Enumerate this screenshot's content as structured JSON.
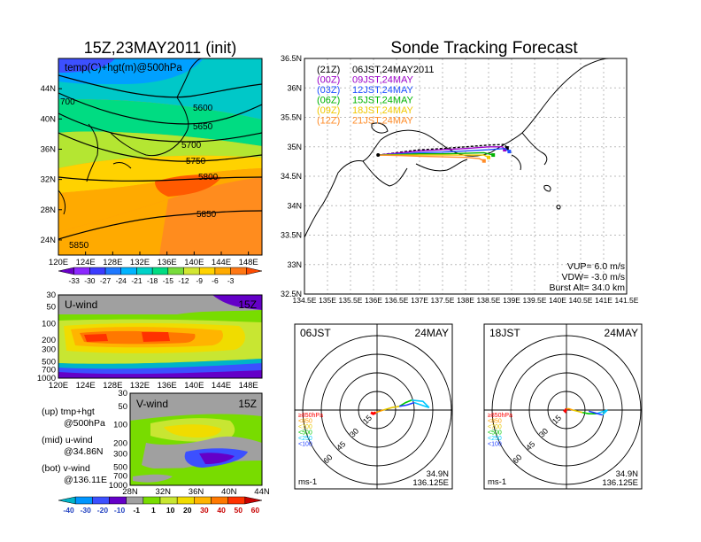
{
  "colors": {
    "temp_scale": [
      "#6a00c8",
      "#8c28ff",
      "#3c3cff",
      "#1e78ff",
      "#00b4ff",
      "#00d2c8",
      "#00dc82",
      "#78dc3c",
      "#d2e632",
      "#ffd200",
      "#ffaa00",
      "#ff7814",
      "#ff4b00"
    ],
    "wind_scale": [
      "#00b4c8",
      "#0096ff",
      "#3c50ff",
      "#6400c8",
      "#a0a0a0",
      "#78dc00",
      "#c8e632",
      "#f0dc00",
      "#ffb400",
      "#ff7800",
      "#ff3200",
      "#c80000"
    ],
    "tracks": [
      "#000000",
      "#9b00c8",
      "#1e50ff",
      "#00b400",
      "#f0c800",
      "#ff8c28"
    ]
  },
  "panel_temp": {
    "title": "15Z,23MAY2011 (init)",
    "label": "temp(C)+hgt(m)@500hPa",
    "lat_ticks": [
      "44N",
      "40N",
      "36N",
      "32N",
      "28N",
      "24N"
    ],
    "lon_ticks": [
      "120E",
      "124E",
      "128E",
      "132E",
      "136E",
      "140E",
      "144E",
      "148E"
    ],
    "contours": [
      "5600",
      "5650",
      "5700",
      "5750",
      "5800",
      "5850",
      "5850",
      "700"
    ],
    "colorbar_labels": [
      "-33",
      "-30",
      "-27",
      "-24",
      "-21",
      "-18",
      "-15",
      "-12",
      "-9",
      "-6",
      "-3"
    ]
  },
  "panel_uwind": {
    "label": "U-wind",
    "time": "15Z",
    "p_ticks": [
      "30",
      "50",
      "100",
      "200",
      "300",
      "500",
      "700",
      "1000"
    ],
    "lon_ticks": [
      "120E",
      "124E",
      "128E",
      "132E",
      "136E",
      "140E",
      "144E",
      "148E"
    ]
  },
  "panel_vwind": {
    "label": "V-wind",
    "time": "15Z",
    "p_ticks": [
      "30",
      "50",
      "100",
      "200",
      "300",
      "500",
      "700",
      "1000"
    ],
    "lat_ticks": [
      "28N",
      "32N",
      "36N",
      "40N",
      "44N"
    ],
    "colorbar_labels": [
      "-40",
      "-30",
      "-20",
      "-10",
      "-1",
      "1",
      "10",
      "20",
      "30",
      "40",
      "50",
      "60"
    ]
  },
  "legend_notes": {
    "up": "(up)  tmp+hgt",
    "up2": "@500hPa",
    "mid": "(mid)  u-wind",
    "mid2": "@34.86N",
    "bot": "(bot)  v-wind",
    "bot2": "@136.11E"
  },
  "panel_track": {
    "title": "Sonde Tracking Forecast",
    "lat_ticks": [
      "36.5N",
      "36N",
      "35.5N",
      "35N",
      "34.5N",
      "34N",
      "33.5N",
      "33N",
      "32.5N"
    ],
    "lon_ticks": [
      "134.5E",
      "135E",
      "135.5E",
      "136E",
      "136.5E",
      "137E",
      "137.5E",
      "138E",
      "138.5E",
      "139E",
      "139.5E",
      "140E",
      "140.5E",
      "141E",
      "141.5E"
    ],
    "legend": [
      {
        "code": "(21Z)",
        "text": "06JST,24MAY2011"
      },
      {
        "code": "(00Z)",
        "text": "09JST,24MAY"
      },
      {
        "code": "(03Z)",
        "text": "12JST,24MAY"
      },
      {
        "code": "(06Z)",
        "text": "15JST,24MAY"
      },
      {
        "code": "(09Z)",
        "text": "18JST,24MAY"
      },
      {
        "code": "(12Z)",
        "text": "21JST,24MAY"
      }
    ],
    "params": {
      "vup": "VUP=  6.0  m/s",
      "vdw": "VDW= -3.0  m/s",
      "burst": "Burst Alt= 34.0  km"
    }
  },
  "hodo_06": {
    "time": "06JST",
    "date": "24MAY",
    "rings": [
      "15",
      "30",
      "45",
      "60"
    ],
    "levels": [
      "≥850hPa",
      "<850",
      "<700",
      "<500",
      "<250",
      "<100"
    ],
    "unit": "ms-1",
    "loc1": "34.9N",
    "loc2": "136.125E"
  },
  "hodo_18": {
    "time": "18JST",
    "date": "24MAY",
    "rings": [
      "15",
      "30",
      "45",
      "60"
    ],
    "levels": [
      "≥850hPa",
      "<850",
      "<700",
      "<500",
      "<250",
      "<100"
    ],
    "unit": "ms-1",
    "loc1": "34.9N",
    "loc2": "136.125E"
  },
  "chart_data": [
    {
      "type": "heatmap",
      "title": "15Z,23MAY2011 (init)",
      "subtitle": "temp(C)+hgt(m)@500hPa",
      "x_ticks": [
        "120E",
        "124E",
        "128E",
        "132E",
        "136E",
        "140E",
        "144E",
        "148E"
      ],
      "y_ticks": [
        "24N",
        "28N",
        "32N",
        "36N",
        "40N",
        "44N"
      ],
      "xlim": [
        120,
        150
      ],
      "ylim": [
        22,
        48
      ],
      "contour_levels": [
        5600,
        5650,
        5700,
        5750,
        5800,
        5850
      ],
      "color_levels": [
        -33,
        -30,
        -27,
        -24,
        -21,
        -18,
        -15,
        -12,
        -9,
        -6,
        -3
      ]
    },
    {
      "type": "heatmap",
      "subtitle": "U-wind 15Z",
      "x_ticks": [
        "120E",
        "124E",
        "128E",
        "132E",
        "136E",
        "140E",
        "144E",
        "148E"
      ],
      "y_ticks": [
        "30",
        "50",
        "100",
        "200",
        "300",
        "500",
        "700",
        "1000"
      ],
      "xlim": [
        120,
        150
      ],
      "ylim": [
        1000,
        30
      ],
      "y_scale": "log"
    },
    {
      "type": "heatmap",
      "subtitle": "V-wind 15Z",
      "x_ticks": [
        "28N",
        "32N",
        "36N",
        "40N",
        "44N"
      ],
      "y_ticks": [
        "30",
        "50",
        "100",
        "200",
        "300",
        "500",
        "700",
        "1000"
      ],
      "xlim": [
        28,
        44
      ],
      "ylim": [
        1000,
        30
      ],
      "y_scale": "log",
      "color_levels": [
        -40,
        -30,
        -20,
        -10,
        -1,
        1,
        10,
        20,
        30,
        40,
        50,
        60
      ]
    },
    {
      "type": "line",
      "title": "Sonde Tracking Forecast",
      "xlim": [
        134.5,
        141.5
      ],
      "ylim": [
        32.5,
        36.5
      ],
      "launch": [
        136.1,
        34.86
      ],
      "series": [
        {
          "name": "(21Z) 06JST,24MAY2011",
          "x": [
            136.1,
            136.6,
            137.0,
            137.5,
            138.0,
            138.5,
            138.85,
            138.9
          ],
          "y": [
            34.86,
            34.91,
            34.95,
            34.97,
            35.0,
            35.03,
            35.04,
            34.98
          ]
        },
        {
          "name": "(00Z) 09JST,24MAY",
          "x": [
            136.1,
            136.6,
            137.0,
            137.5,
            138.0,
            138.5,
            138.8,
            138.85
          ],
          "y": [
            34.86,
            34.9,
            34.93,
            34.95,
            34.97,
            35.0,
            35.0,
            34.95
          ]
        },
        {
          "name": "(03Z) 12JST,24MAY",
          "x": [
            136.1,
            136.6,
            137.0,
            137.5,
            138.0,
            138.5,
            138.85,
            138.95
          ],
          "y": [
            34.86,
            34.88,
            34.9,
            34.91,
            34.93,
            34.95,
            34.97,
            34.92
          ]
        },
        {
          "name": "(06Z) 15JST,24MAY",
          "x": [
            136.1,
            136.6,
            137.0,
            137.5,
            138.0,
            138.4,
            138.6
          ],
          "y": [
            34.86,
            34.87,
            34.88,
            34.88,
            34.89,
            34.9,
            34.86
          ]
        },
        {
          "name": "(09Z) 18JST,24MAY",
          "x": [
            136.1,
            136.6,
            137.0,
            137.5,
            138.0,
            138.4,
            138.5
          ],
          "y": [
            34.86,
            34.86,
            34.86,
            34.86,
            34.86,
            34.86,
            34.82
          ]
        },
        {
          "name": "(12Z) 21JST,24MAY",
          "x": [
            136.1,
            136.6,
            137.0,
            137.5,
            138.0,
            138.3,
            138.4
          ],
          "y": [
            34.86,
            34.85,
            34.84,
            34.83,
            34.82,
            34.8,
            34.76
          ]
        }
      ],
      "annotations": [
        "VUP= 6.0 m/s",
        "VDW= -3.0 m/s",
        "Burst Alt= 34.0 km"
      ]
    },
    {
      "type": "line",
      "subtitle": "06JST 24MAY",
      "rings": [
        15,
        30,
        45,
        60
      ],
      "unit": "ms-1",
      "location": "34.9N 136.125E",
      "series": [
        {
          "name": "≥850hPa",
          "u": [
            -5,
            -3,
            -1
          ],
          "v": [
            -2,
            -3,
            -2
          ]
        },
        {
          "name": "<850",
          "u": [
            -1,
            2,
            5
          ],
          "v": [
            -2,
            -1,
            0
          ]
        },
        {
          "name": "<700",
          "u": [
            5,
            12,
            18
          ],
          "v": [
            0,
            2,
            3
          ]
        },
        {
          "name": "<500",
          "u": [
            18,
            23,
            28
          ],
          "v": [
            3,
            6,
            8
          ]
        },
        {
          "name": "<250",
          "u": [
            28,
            37,
            42,
            30
          ],
          "v": [
            8,
            7,
            2,
            6
          ]
        },
        {
          "name": "<100",
          "u": [
            30,
            24,
            18
          ],
          "v": [
            6,
            4,
            3
          ]
        }
      ]
    },
    {
      "type": "line",
      "subtitle": "18JST 24MAY",
      "rings": [
        15,
        30,
        45,
        60
      ],
      "unit": "ms-1",
      "location": "34.9N 136.125E",
      "series": [
        {
          "name": "≥850hPa",
          "u": [
            -2,
            -1,
            0
          ],
          "v": [
            0,
            -1,
            1
          ]
        },
        {
          "name": "<850",
          "u": [
            0,
            2,
            5
          ],
          "v": [
            1,
            1,
            0
          ]
        },
        {
          "name": "<700",
          "u": [
            5,
            9,
            13
          ],
          "v": [
            0,
            -1,
            -2
          ]
        },
        {
          "name": "<500",
          "u": [
            13,
            18,
            24
          ],
          "v": [
            -2,
            -3,
            -3
          ]
        },
        {
          "name": "<250",
          "u": [
            24,
            30,
            33,
            29
          ],
          "v": [
            -3,
            -1,
            0,
            -4
          ]
        },
        {
          "name": "<100",
          "u": [
            29,
            22,
            18
          ],
          "v": [
            -4,
            -2,
            -1
          ]
        }
      ]
    }
  ]
}
